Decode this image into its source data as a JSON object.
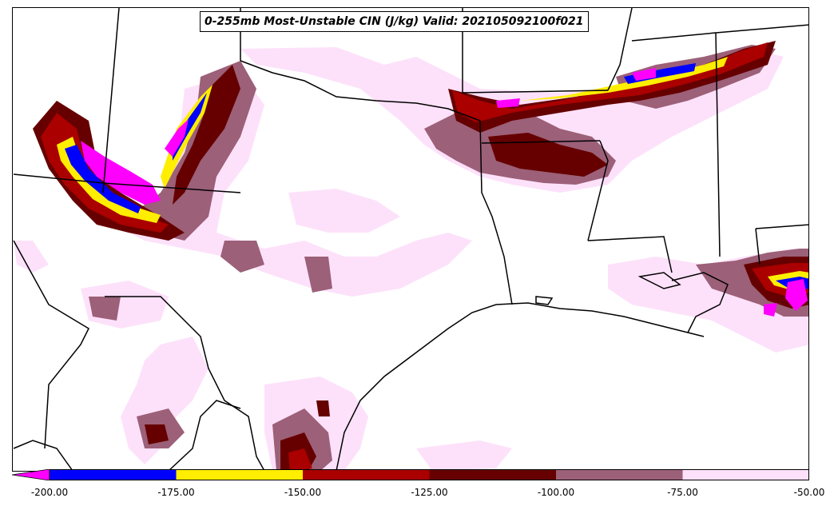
{
  "title": "0-255mb Most-Unstable CIN (J/kg) Valid: 202105092100f021",
  "colorbar": {
    "extend": "min",
    "bins": [
      {
        "from": -200,
        "to": -175,
        "color": "#0000ff"
      },
      {
        "from": -175,
        "to": -150,
        "color": "#ffee00"
      },
      {
        "from": -150,
        "to": -125,
        "color": "#aa0000"
      },
      {
        "from": -125,
        "to": -100,
        "color": "#660000"
      },
      {
        "from": -100,
        "to": -75,
        "color": "#9c6078"
      },
      {
        "from": -75,
        "to": -50,
        "color": "#fde1fa"
      }
    ],
    "under_color": "#ff00ff",
    "tick_labels": [
      "-200.00",
      "-175.00",
      "-150.00",
      "-125.00",
      "-100.00",
      "-75.00",
      "-50.00"
    ]
  },
  "map": {
    "region": "Southern Plains / Gulf Coast, USA",
    "field_colors": {
      "weak": "#fde1fa",
      "moderate": "#9c6078",
      "strong": "#660000",
      "very_strong": "#aa0000",
      "extreme": "#ffee00",
      "severe": "#0000ff",
      "under": "#ff00ff"
    }
  }
}
